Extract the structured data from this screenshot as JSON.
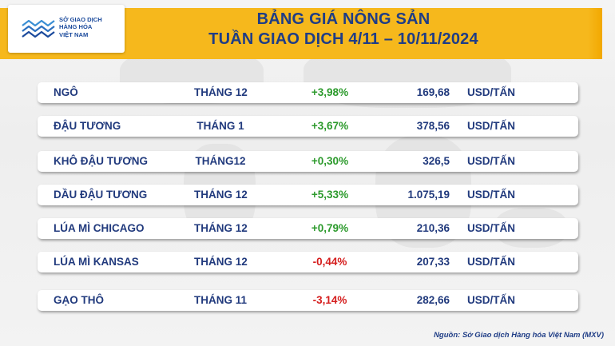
{
  "header": {
    "logo_lines": [
      "SỞ GIAO DỊCH",
      "HÀNG HÓA",
      "VIỆT NAM"
    ],
    "title_line1": "BẢNG GIÁ NÔNG SẢN",
    "title_line2": "TUẦN GIAO DỊCH 4/11 – 10/11/2024",
    "accent_color": "#f6b81c",
    "text_color": "#1f3d86"
  },
  "table": {
    "rows": [
      {
        "name": "NGÔ",
        "month": "THÁNG 12",
        "change": "+3,98%",
        "direction": "up",
        "price": "169,68",
        "unit": "USD/TẤN"
      },
      {
        "name": "ĐẬU TƯƠNG",
        "month": "THÁNG 1",
        "change": "+3,67%",
        "direction": "up",
        "price": "378,56",
        "unit": "USD/TẤN"
      },
      {
        "name": "KHÔ ĐẬU TƯƠNG",
        "month": "THÁNG12",
        "change": "+0,30%",
        "direction": "up",
        "price": "326,5",
        "unit": "USD/TẤN"
      },
      {
        "name": "DẦU ĐẬU TƯƠNG",
        "month": "THÁNG 12",
        "change": "+5,33%",
        "direction": "up",
        "price": "1.075,19",
        "unit": "USD/TẤN"
      },
      {
        "name": "LÚA MÌ CHICAGO",
        "month": "THÁNG 12",
        "change": "+0,79%",
        "direction": "up",
        "price": "210,36",
        "unit": "USD/TẤN"
      },
      {
        "name": "LÚA MÌ KANSAS",
        "month": "THÁNG 12",
        "change": "-0,44%",
        "direction": "down",
        "price": "207,33",
        "unit": "USD/TẤN"
      },
      {
        "name": "GẠO THÔ",
        "month": "THÁNG 11",
        "change": "-3,14%",
        "direction": "down",
        "price": "282,66",
        "unit": "USD/TẤN"
      }
    ],
    "up_color": "#2c9a2c",
    "down_color": "#d51e1e"
  },
  "footer": {
    "source": "Nguồn: Sở Giao dịch Hàng hóa Việt Nam (MXV)"
  }
}
